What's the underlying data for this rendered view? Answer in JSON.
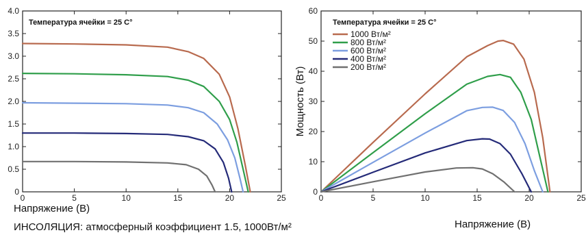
{
  "caption": "ИНСОЛЯЦИЯ: атмосферный коэффициент 1.5, 1000Вт/м²",
  "chart_data": [
    {
      "type": "line",
      "annotation": "Температура ячейки = 25 C°",
      "xlabel": "Напряжение (В)",
      "ylabel": "",
      "xlim": [
        0,
        25
      ],
      "ylim": [
        0,
        4.0
      ],
      "xticks": [
        0,
        5,
        10,
        15,
        20,
        25
      ],
      "yticks": [
        0,
        0.5,
        1.0,
        1.5,
        2.0,
        2.5,
        3.0,
        3.5,
        4.0
      ],
      "ytick_labels": [
        "0",
        "0.5",
        "1.0",
        "1.5",
        "2.0",
        "2.5",
        "3.0",
        "3.5",
        "4.0"
      ],
      "grid": false,
      "series": [
        {
          "color": "#b86a4e",
          "x": [
            0,
            5,
            10,
            14,
            16,
            17.5,
            19,
            20,
            20.8,
            21.5,
            22.0
          ],
          "y": [
            3.28,
            3.27,
            3.25,
            3.2,
            3.1,
            2.95,
            2.6,
            2.1,
            1.4,
            0.6,
            0
          ]
        },
        {
          "color": "#2f9e4a",
          "x": [
            0,
            5,
            10,
            14,
            16,
            17.5,
            19,
            20,
            20.7,
            21.3,
            21.8
          ],
          "y": [
            2.62,
            2.61,
            2.59,
            2.55,
            2.47,
            2.33,
            2.0,
            1.6,
            1.1,
            0.5,
            0
          ]
        },
        {
          "color": "#7c9ee0",
          "x": [
            0,
            5,
            10,
            14,
            16,
            17.5,
            18.8,
            19.8,
            20.5,
            21.0,
            21.3
          ],
          "y": [
            1.97,
            1.96,
            1.95,
            1.92,
            1.86,
            1.75,
            1.5,
            1.15,
            0.75,
            0.3,
            0
          ]
        },
        {
          "color": "#242a78",
          "x": [
            0,
            5,
            10,
            14,
            16,
            17.5,
            18.6,
            19.4,
            19.9,
            20.2
          ],
          "y": [
            1.3,
            1.3,
            1.29,
            1.27,
            1.22,
            1.13,
            0.95,
            0.65,
            0.3,
            0
          ]
        },
        {
          "color": "#707070",
          "x": [
            0,
            5,
            10,
            14,
            15.8,
            17,
            17.8,
            18.3,
            18.6
          ],
          "y": [
            0.67,
            0.67,
            0.66,
            0.64,
            0.6,
            0.5,
            0.35,
            0.15,
            0
          ]
        }
      ]
    },
    {
      "type": "line",
      "annotation": "Температура ячейки = 25 C°",
      "xlabel": "Напряжение (В)",
      "ylabel": "Мощность (Вт)",
      "xlim": [
        0,
        25
      ],
      "ylim": [
        0,
        60
      ],
      "xticks": [
        0,
        5,
        10,
        15,
        20,
        25
      ],
      "yticks": [
        0,
        10,
        20,
        30,
        40,
        50,
        60
      ],
      "ytick_labels": [
        "0",
        "10",
        "20",
        "30",
        "40",
        "50",
        "60"
      ],
      "grid": false,
      "legend_position": "top-left",
      "series": [
        {
          "name": "1000 Вт/м²",
          "color": "#b86a4e",
          "x": [
            0,
            5,
            10,
            14,
            16,
            17,
            17.5,
            18.5,
            19.5,
            20.5,
            21.3,
            22.0
          ],
          "y": [
            0,
            16.4,
            32.5,
            44.8,
            48.5,
            50.0,
            50.2,
            49.0,
            44.0,
            33.0,
            18.0,
            0
          ]
        },
        {
          "name": "800 Вт/м²",
          "color": "#2f9e4a",
          "x": [
            0,
            5,
            10,
            14,
            16,
            17.2,
            18.2,
            19.2,
            20.2,
            21.0,
            21.8
          ],
          "y": [
            0,
            13.0,
            25.9,
            35.7,
            38.3,
            38.9,
            38.0,
            33.0,
            24.0,
            12.0,
            0
          ]
        },
        {
          "name": "600 Вт/м²",
          "color": "#7c9ee0",
          "x": [
            0,
            5,
            10,
            14,
            15.5,
            16.5,
            17.5,
            18.6,
            19.6,
            20.5,
            21.3
          ],
          "y": [
            0,
            9.8,
            19.5,
            26.9,
            28.0,
            28.1,
            27.0,
            23.0,
            16.0,
            7.0,
            0
          ]
        },
        {
          "name": "400 Вт/м²",
          "color": "#242a78",
          "x": [
            0,
            5,
            10,
            14,
            15.5,
            16.2,
            17.2,
            18.2,
            19.3,
            20.2
          ],
          "y": [
            0,
            6.5,
            12.9,
            17.0,
            17.6,
            17.5,
            16.0,
            12.5,
            6.0,
            0
          ]
        },
        {
          "name": "200 Вт/м²",
          "color": "#707070",
          "x": [
            0,
            5,
            10,
            13,
            14.6,
            15.5,
            16.5,
            17.6,
            18.6
          ],
          "y": [
            0,
            3.35,
            6.6,
            7.9,
            8.0,
            7.6,
            6.0,
            3.2,
            0
          ]
        }
      ]
    }
  ]
}
